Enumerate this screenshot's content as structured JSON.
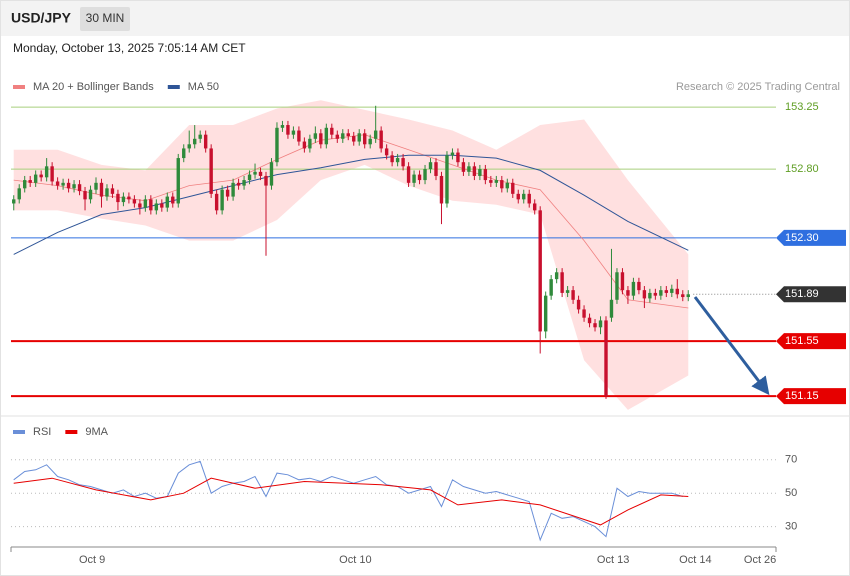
{
  "header": {
    "symbol": "USD/JPY",
    "timeframe": "30 MIN",
    "timestamp": "Monday, October 13, 2025 7:05:14 AM CET"
  },
  "chart_data": [
    {
      "type": "candlestick",
      "source": "Research © 2025 Trading Central",
      "xlim": [
        -0.5,
        139
      ],
      "ylim": [
        151.02,
        153.52
      ],
      "up_color": "#2f8a3b",
      "down_color": "#c8102e",
      "x": [
        0,
        1,
        2,
        3,
        4,
        5,
        6,
        7,
        8,
        9,
        10,
        11,
        12,
        13,
        14,
        15,
        16,
        17,
        18,
        19,
        20,
        21,
        22,
        23,
        24,
        25,
        26,
        27,
        28,
        29,
        30,
        31,
        32,
        33,
        34,
        35,
        36,
        37,
        38,
        39,
        40,
        41,
        42,
        43,
        44,
        45,
        46,
        47,
        48,
        49,
        50,
        51,
        52,
        53,
        54,
        55,
        56,
        57,
        58,
        59,
        60,
        61,
        62,
        63,
        64,
        65,
        66,
        67,
        68,
        69,
        70,
        71,
        72,
        73,
        74,
        75,
        76,
        77,
        78,
        79,
        80,
        81,
        82,
        83,
        84,
        85,
        86,
        87,
        88,
        89,
        90,
        91,
        92,
        93,
        94,
        95,
        96,
        97,
        98,
        99,
        100,
        101,
        102,
        103,
        104,
        105,
        106,
        107,
        108,
        109,
        110,
        111,
        112,
        113,
        114,
        115,
        116,
        117,
        118,
        119,
        120,
        121,
        122,
        123
      ],
      "open": [
        152.55,
        152.58,
        152.66,
        152.72,
        152.7,
        152.76,
        152.74,
        152.82,
        152.71,
        152.68,
        152.7,
        152.66,
        152.69,
        152.64,
        152.58,
        152.65,
        152.7,
        152.6,
        152.66,
        152.62,
        152.56,
        152.6,
        152.58,
        152.55,
        152.52,
        152.58,
        152.5,
        152.55,
        152.52,
        152.6,
        152.55,
        152.88,
        152.95,
        152.98,
        153.02,
        153.05,
        152.95,
        152.62,
        152.5,
        152.65,
        152.6,
        152.7,
        152.68,
        152.72,
        152.76,
        152.78,
        152.75,
        152.68,
        152.85,
        153.1,
        153.12,
        153.05,
        153.08,
        153.0,
        152.95,
        153.02,
        153.06,
        152.98,
        153.1,
        153.05,
        153.02,
        153.06,
        153.04,
        153.0,
        153.06,
        152.98,
        153.02,
        153.08,
        152.95,
        152.9,
        152.85,
        152.88,
        152.82,
        152.7,
        152.76,
        152.72,
        152.8,
        152.85,
        152.75,
        152.55,
        152.9,
        152.92,
        152.85,
        152.78,
        152.82,
        152.75,
        152.8,
        152.72,
        152.7,
        152.72,
        152.66,
        152.7,
        152.62,
        152.58,
        152.62,
        152.55,
        152.5,
        151.62,
        151.88,
        152.0,
        152.05,
        151.9,
        151.92,
        151.85,
        151.78,
        151.72,
        151.68,
        151.65,
        151.7,
        151.72,
        151.85,
        152.05,
        151.92,
        151.88,
        151.98,
        151.92,
        151.86,
        151.9,
        151.88,
        151.92,
        151.9,
        151.93,
        151.89,
        151.87
      ],
      "high": [
        152.61,
        152.69,
        152.75,
        152.75,
        152.79,
        152.79,
        152.88,
        152.85,
        152.74,
        152.73,
        152.73,
        152.72,
        152.72,
        152.67,
        152.68,
        152.74,
        152.73,
        152.69,
        152.69,
        152.65,
        152.63,
        152.63,
        152.61,
        152.58,
        152.61,
        152.61,
        152.58,
        152.58,
        152.63,
        152.63,
        152.91,
        152.98,
        153.08,
        153.12,
        153.08,
        153.08,
        152.98,
        152.65,
        152.68,
        152.68,
        152.73,
        152.73,
        152.75,
        152.79,
        152.84,
        152.81,
        152.78,
        152.88,
        153.14,
        153.15,
        153.15,
        153.11,
        153.11,
        153.03,
        153.05,
        153.11,
        153.09,
        153.13,
        153.13,
        153.08,
        153.09,
        153.09,
        153.07,
        153.09,
        153.09,
        153.05,
        153.26,
        153.11,
        152.98,
        152.93,
        152.91,
        152.91,
        152.85,
        152.79,
        152.79,
        152.83,
        152.88,
        152.88,
        152.78,
        152.93,
        152.95,
        152.95,
        152.88,
        152.85,
        152.85,
        152.83,
        152.83,
        152.75,
        152.75,
        152.75,
        152.73,
        152.73,
        152.65,
        152.65,
        152.65,
        152.58,
        152.53,
        151.91,
        152.03,
        152.08,
        152.08,
        151.95,
        151.95,
        151.88,
        151.81,
        151.75,
        151.71,
        151.73,
        151.73,
        152.22,
        152.08,
        152.08,
        151.95,
        152.01,
        152.01,
        151.95,
        151.93,
        151.93,
        151.95,
        151.95,
        151.96,
        152.0,
        151.92,
        151.92
      ],
      "low": [
        152.5,
        152.55,
        152.63,
        152.67,
        152.67,
        152.71,
        152.71,
        152.68,
        152.65,
        152.65,
        152.63,
        152.63,
        152.61,
        152.5,
        152.55,
        152.62,
        152.52,
        152.57,
        152.59,
        152.5,
        152.53,
        152.55,
        152.52,
        152.47,
        152.49,
        152.47,
        152.47,
        152.49,
        152.49,
        152.52,
        152.52,
        152.85,
        152.92,
        152.95,
        152.99,
        152.92,
        152.59,
        152.47,
        152.47,
        152.57,
        152.57,
        152.65,
        152.65,
        152.69,
        152.73,
        152.72,
        152.17,
        152.65,
        152.82,
        153.07,
        153.02,
        153.02,
        152.97,
        152.92,
        152.92,
        152.99,
        152.95,
        152.95,
        153.02,
        152.99,
        152.99,
        153.01,
        152.97,
        152.97,
        152.95,
        152.95,
        152.99,
        152.92,
        152.87,
        152.82,
        152.82,
        152.79,
        152.67,
        152.67,
        152.69,
        152.69,
        152.77,
        152.72,
        152.4,
        152.52,
        152.87,
        152.82,
        152.75,
        152.75,
        152.72,
        152.72,
        152.69,
        152.67,
        152.67,
        152.63,
        152.63,
        152.59,
        152.55,
        152.55,
        152.52,
        152.47,
        151.46,
        151.57,
        151.85,
        151.97,
        151.87,
        151.87,
        151.82,
        151.75,
        151.69,
        151.65,
        151.62,
        151.6,
        151.13,
        151.69,
        151.82,
        151.89,
        151.82,
        151.85,
        151.89,
        151.79,
        151.83,
        151.85,
        151.85,
        151.87,
        151.87,
        151.86,
        151.84,
        151.84
      ],
      "close": [
        152.58,
        152.66,
        152.72,
        152.7,
        152.76,
        152.74,
        152.82,
        152.71,
        152.68,
        152.7,
        152.66,
        152.69,
        152.64,
        152.58,
        152.65,
        152.7,
        152.6,
        152.66,
        152.62,
        152.56,
        152.6,
        152.58,
        152.55,
        152.52,
        152.58,
        152.5,
        152.55,
        152.52,
        152.6,
        152.55,
        152.88,
        152.95,
        152.98,
        153.02,
        153.05,
        152.95,
        152.62,
        152.5,
        152.65,
        152.6,
        152.7,
        152.68,
        152.72,
        152.76,
        152.78,
        152.75,
        152.68,
        152.85,
        153.1,
        153.12,
        153.05,
        153.08,
        153.0,
        152.95,
        153.02,
        153.06,
        152.98,
        153.1,
        153.05,
        153.02,
        153.06,
        153.04,
        153.0,
        153.06,
        152.98,
        153.02,
        153.08,
        152.95,
        152.9,
        152.85,
        152.88,
        152.82,
        152.7,
        152.76,
        152.72,
        152.8,
        152.85,
        152.75,
        152.55,
        152.9,
        152.92,
        152.85,
        152.78,
        152.82,
        152.75,
        152.8,
        152.72,
        152.7,
        152.72,
        152.66,
        152.7,
        152.62,
        152.58,
        152.62,
        152.55,
        152.5,
        151.62,
        151.88,
        152.0,
        152.05,
        151.9,
        151.92,
        151.85,
        151.78,
        151.72,
        151.68,
        151.65,
        151.7,
        151.15,
        151.85,
        152.05,
        151.92,
        151.88,
        151.98,
        151.92,
        151.86,
        151.9,
        151.88,
        151.92,
        151.9,
        151.93,
        151.89,
        151.87,
        151.89
      ],
      "series": [
        {
          "name": "MA 20 + Bollinger Bands",
          "color": "#f08080",
          "band_color": "#ffd6d6",
          "x": [
            0,
            8,
            16,
            24,
            32,
            40,
            48,
            56,
            64,
            72,
            80,
            88,
            96,
            104,
            112,
            123
          ],
          "values": [
            152.72,
            152.68,
            152.61,
            152.57,
            152.68,
            152.72,
            152.87,
            153.01,
            153.05,
            152.94,
            152.83,
            152.72,
            152.65,
            152.28,
            151.85,
            151.79
          ],
          "upper": [
            152.94,
            152.94,
            152.83,
            152.79,
            153.12,
            153.12,
            153.24,
            153.3,
            153.23,
            153.16,
            153.08,
            152.94,
            153.12,
            153.16,
            152.72,
            152.18
          ],
          "lower": [
            152.5,
            152.5,
            152.44,
            152.39,
            152.28,
            152.28,
            152.43,
            152.72,
            152.83,
            152.68,
            152.57,
            152.54,
            152.47,
            151.41,
            151.05,
            151.3
          ]
        },
        {
          "name": "MA 50",
          "color": "#2f5597",
          "x": [
            0,
            8,
            16,
            24,
            32,
            40,
            48,
            56,
            64,
            72,
            80,
            88,
            96,
            104,
            112,
            123
          ],
          "values": [
            152.18,
            152.34,
            152.47,
            152.52,
            152.6,
            152.68,
            152.76,
            152.81,
            152.87,
            152.9,
            152.9,
            152.88,
            152.79,
            152.61,
            152.42,
            152.21
          ]
        }
      ],
      "levels": [
        153.25,
        {
          "value": 152.8,
          "label": "152.80"
        },
        {
          "value": 152.3,
          "label": "152.30"
        },
        151.55,
        151.15
      ],
      "level_colors": [
        "#a6cf7c",
        "#a6cf7c",
        "#2f6fe0",
        "#e60000",
        "#e60000"
      ],
      "level_tags": [
        false,
        false,
        true,
        true,
        true
      ],
      "last_price": 151.89,
      "last_price_color": "#333333"
    },
    {
      "type": "line",
      "xlim": [
        -0.5,
        139
      ],
      "ylim": [
        19,
        95
      ],
      "yticks": [
        30,
        50,
        70
      ],
      "grid": true,
      "xticks": [
        {
          "value": 14.3,
          "label": "Oct 9"
        },
        {
          "value": 62.3,
          "label": "Oct 10"
        },
        {
          "value": 109.3,
          "label": "Oct 13"
        },
        {
          "value": 124.3,
          "label": "Oct 14"
        },
        {
          "value": 136.1,
          "label": "Oct 26"
        }
      ],
      "series": [
        {
          "name": "RSI",
          "color": "#6a8fd8",
          "x": [
            0,
            2,
            4,
            6,
            8,
            10,
            12,
            14,
            16,
            18,
            20,
            22,
            24,
            26,
            28,
            30,
            32,
            34,
            36,
            38,
            40,
            42,
            44,
            46,
            48,
            50,
            52,
            54,
            56,
            58,
            60,
            62,
            64,
            66,
            68,
            70,
            72,
            74,
            76,
            78,
            80,
            82,
            84,
            86,
            88,
            90,
            92,
            94,
            96,
            98,
            100,
            102,
            104,
            106,
            108,
            110,
            112,
            114,
            116,
            118,
            120,
            122
          ],
          "values": [
            58,
            63,
            64,
            67,
            60,
            58,
            55,
            54,
            52,
            50,
            52,
            48,
            50,
            47,
            48,
            62,
            67,
            69,
            50,
            54,
            56,
            57,
            60,
            48,
            62,
            61,
            58,
            59,
            57,
            60,
            58,
            56,
            58,
            60,
            55,
            54,
            50,
            52,
            54,
            42,
            58,
            54,
            52,
            50,
            51,
            49,
            47,
            45,
            22,
            38,
            35,
            36,
            33,
            30,
            24,
            53,
            48,
            51,
            50,
            50,
            50,
            48
          ]
        },
        {
          "name": "9MA",
          "color": "#e60000",
          "x": [
            0,
            7,
            15,
            25,
            31,
            36,
            44,
            53,
            67,
            76,
            81,
            89,
            96,
            107,
            112,
            118,
            123
          ],
          "values": [
            56,
            59,
            52,
            46,
            50,
            59,
            53,
            57,
            55,
            52,
            43,
            46,
            43,
            31,
            40,
            49,
            48
          ]
        }
      ]
    }
  ]
}
